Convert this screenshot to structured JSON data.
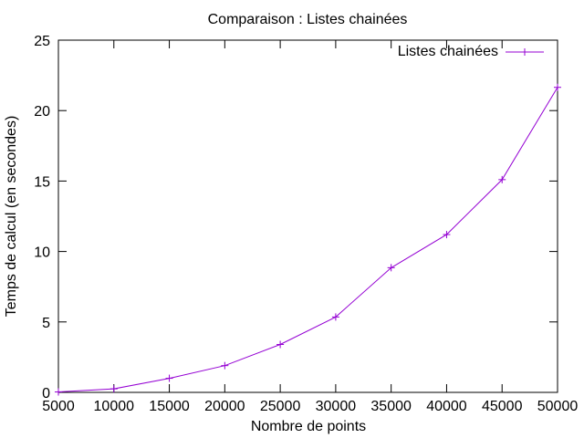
{
  "chart_data": {
    "type": "line",
    "title": "Comparaison : Listes chainées",
    "xlabel": "Nombre de points",
    "ylabel": "Temps de calcul (en secondes)",
    "xlim": [
      5000,
      50000
    ],
    "ylim": [
      0,
      25
    ],
    "xticks": [
      5000,
      10000,
      15000,
      20000,
      25000,
      30000,
      35000,
      40000,
      45000,
      50000
    ],
    "yticks": [
      0,
      5,
      10,
      15,
      20,
      25
    ],
    "grid": false,
    "legend_position": "top-right",
    "series": [
      {
        "name": "Listes chainées",
        "color": "#9400d3",
        "marker": "plus",
        "x": [
          5000,
          10000,
          15000,
          20000,
          25000,
          30000,
          35000,
          40000,
          45000,
          50000
        ],
        "y": [
          0.03,
          0.25,
          1.0,
          1.9,
          3.4,
          5.35,
          8.85,
          11.2,
          15.1,
          21.65
        ]
      }
    ]
  }
}
